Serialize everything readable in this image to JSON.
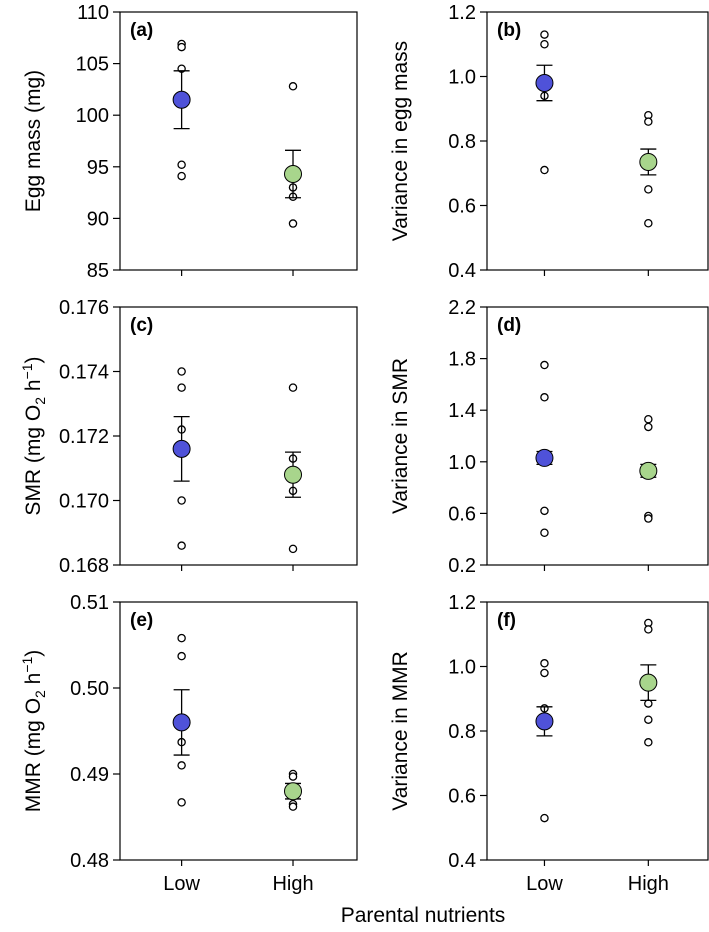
{
  "figure": {
    "xlabel": "Parental nutrients",
    "categories": [
      "Low",
      "High"
    ]
  },
  "colors": {
    "low_fill": "#4F52D9",
    "high_fill": "#A8D58C",
    "stroke": "#000000"
  },
  "chart_data": [
    {
      "type": "scatter",
      "panel": "(a)",
      "ylabel": "Egg mass (mg)",
      "ylim": [
        85,
        110
      ],
      "yticks": [
        85,
        90,
        95,
        100,
        105,
        110
      ],
      "tick_labels": [
        "85",
        "90",
        "95",
        "100",
        "105",
        "110"
      ],
      "categories": [
        "Low",
        "High"
      ],
      "series": [
        {
          "name": "Low",
          "mean": 101.5,
          "se_low": 98.7,
          "se_high": 104.3,
          "points": [
            106.9,
            106.6,
            104.5,
            95.2,
            94.1
          ]
        },
        {
          "name": "High",
          "mean": 94.3,
          "se_low": 92.0,
          "se_high": 96.6,
          "points": [
            102.8,
            94.5,
            93.0,
            92.1,
            89.5
          ]
        }
      ]
    },
    {
      "type": "scatter",
      "panel": "(b)",
      "ylabel": "Variance in egg mass",
      "ylim": [
        0.4,
        1.2
      ],
      "yticks": [
        0.4,
        0.6,
        0.8,
        1.0,
        1.2
      ],
      "tick_labels": [
        "0.4",
        "0.6",
        "0.8",
        "1.0",
        "1.2"
      ],
      "categories": [
        "Low",
        "High"
      ],
      "series": [
        {
          "name": "Low",
          "mean": 0.98,
          "se_low": 0.925,
          "se_high": 1.035,
          "points": [
            1.13,
            1.1,
            0.99,
            0.94,
            0.71
          ]
        },
        {
          "name": "High",
          "mean": 0.735,
          "se_low": 0.695,
          "se_high": 0.775,
          "points": [
            0.88,
            0.86,
            0.73,
            0.65,
            0.545
          ]
        }
      ]
    },
    {
      "type": "scatter",
      "panel": "(c)",
      "ylabel": "SMR (mg O2 h−1)",
      "ylim": [
        0.168,
        0.176
      ],
      "yticks": [
        0.168,
        0.17,
        0.172,
        0.174,
        0.176
      ],
      "tick_labels": [
        "0.168",
        "0.170",
        "0.172",
        "0.174",
        "0.176"
      ],
      "categories": [
        "Low",
        "High"
      ],
      "series": [
        {
          "name": "Low",
          "mean": 0.1716,
          "se_low": 0.1706,
          "se_high": 0.1726,
          "points": [
            0.174,
            0.1735,
            0.1722,
            0.17,
            0.1686
          ]
        },
        {
          "name": "High",
          "mean": 0.1708,
          "se_low": 0.1701,
          "se_high": 0.1715,
          "points": [
            0.1735,
            0.1713,
            0.1707,
            0.1703,
            0.1685
          ]
        }
      ]
    },
    {
      "type": "scatter",
      "panel": "(d)",
      "ylabel": "Variance in SMR",
      "ylim": [
        0.2,
        2.2
      ],
      "yticks": [
        0.2,
        0.6,
        1.0,
        1.4,
        1.8,
        2.2
      ],
      "tick_labels": [
        "0.2",
        "0.6",
        "1.0",
        "1.4",
        "1.8",
        "2.2"
      ],
      "categories": [
        "Low",
        "High"
      ],
      "series": [
        {
          "name": "Low",
          "mean": 1.03,
          "se_low": 0.98,
          "se_high": 1.08,
          "points": [
            1.75,
            1.5,
            1.03,
            0.62,
            0.45
          ]
        },
        {
          "name": "High",
          "mean": 0.93,
          "se_low": 0.88,
          "se_high": 0.98,
          "points": [
            1.33,
            1.27,
            0.93,
            0.58,
            0.56
          ]
        }
      ]
    },
    {
      "type": "scatter",
      "panel": "(e)",
      "ylabel": "MMR (mg O2 h−1)",
      "ylim": [
        0.48,
        0.51
      ],
      "yticks": [
        0.48,
        0.49,
        0.5,
        0.51
      ],
      "tick_labels": [
        "0.48",
        "0.49",
        "0.50",
        "0.51"
      ],
      "categories": [
        "Low",
        "High"
      ],
      "series": [
        {
          "name": "Low",
          "mean": 0.496,
          "se_low": 0.4922,
          "se_high": 0.4998,
          "points": [
            0.5058,
            0.5037,
            0.4937,
            0.491,
            0.4867
          ]
        },
        {
          "name": "High",
          "mean": 0.488,
          "se_low": 0.4871,
          "se_high": 0.4889,
          "points": [
            0.49,
            0.4897,
            0.4882,
            0.4865,
            0.4862
          ]
        }
      ]
    },
    {
      "type": "scatter",
      "panel": "(f)",
      "ylabel": "Variance in MMR",
      "ylim": [
        0.4,
        1.2
      ],
      "yticks": [
        0.4,
        0.6,
        0.8,
        1.0,
        1.2
      ],
      "tick_labels": [
        "0.4",
        "0.6",
        "0.8",
        "1.0",
        "1.2"
      ],
      "categories": [
        "Low",
        "High"
      ],
      "series": [
        {
          "name": "Low",
          "mean": 0.83,
          "se_low": 0.785,
          "se_high": 0.875,
          "points": [
            1.01,
            0.98,
            0.87,
            0.83,
            0.53
          ]
        },
        {
          "name": "High",
          "mean": 0.95,
          "se_low": 0.895,
          "se_high": 1.005,
          "points": [
            1.135,
            1.115,
            0.885,
            0.835,
            0.765
          ]
        }
      ]
    }
  ]
}
